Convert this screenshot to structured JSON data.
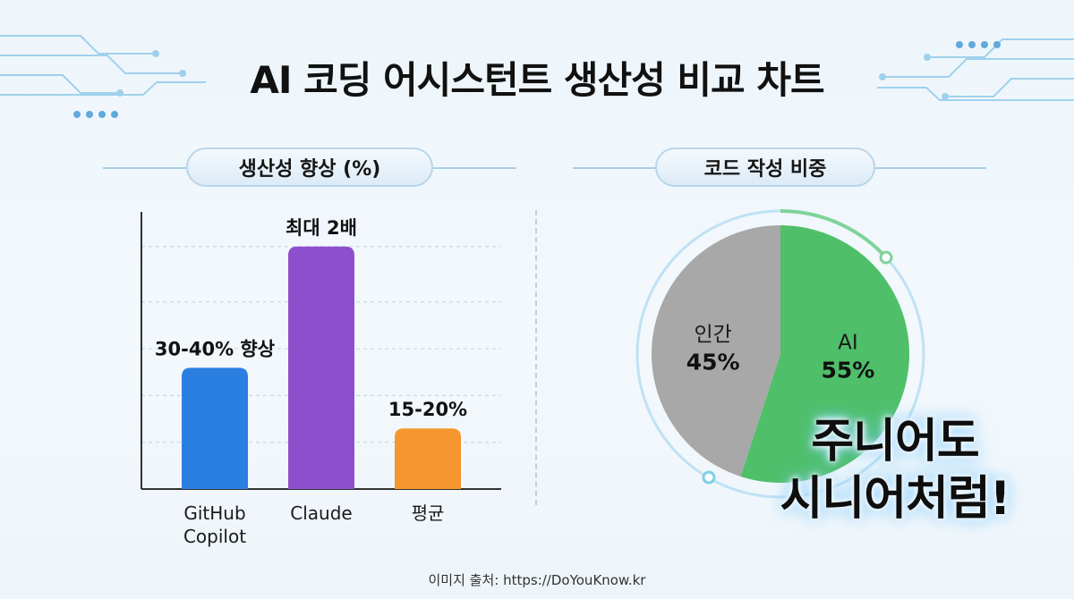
{
  "title": "AI 코딩 어시스턴트 생산성 비교 차트",
  "source": "이미지 출처: https://DoYouKnow.kr",
  "slogan": [
    "주니어도",
    "시니어처럼!"
  ],
  "chart_data": [
    {
      "type": "bar",
      "title": "생산성 향상 (%)",
      "categories": [
        [
          "GitHub",
          "Copilot"
        ],
        [
          "Claude"
        ],
        [
          "평균"
        ]
      ],
      "values": [
        35,
        70,
        17.5
      ],
      "value_labels": [
        "30-40% 향상",
        "최대 2배",
        "15-20%"
      ],
      "colors": [
        "#2b7fe0",
        "#8e4fcc",
        "#f6962e"
      ],
      "ylim": [
        0,
        80
      ],
      "grid": true,
      "grid_values": [
        13.5,
        27,
        40.5,
        54,
        70
      ]
    },
    {
      "type": "pie",
      "title": "코드 작성 비중",
      "slices": [
        {
          "label": "AI",
          "value": 55,
          "value_label": "55%",
          "color": "#4fbf6a"
        },
        {
          "label": "인간",
          "value": 45,
          "value_label": "45%",
          "color": "#a8a8a8"
        }
      ]
    }
  ]
}
